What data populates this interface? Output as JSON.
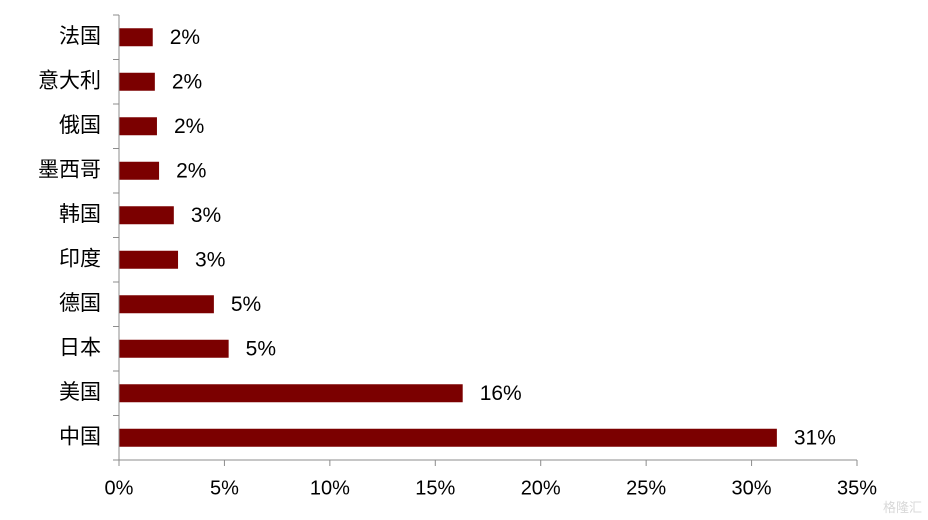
{
  "chart_data": {
    "type": "bar",
    "orientation": "horizontal",
    "categories": [
      "中国",
      "美国",
      "日本",
      "德国",
      "印度",
      "韩国",
      "墨西哥",
      "俄国",
      "意大利",
      "法国"
    ],
    "values": [
      31.2,
      16.3,
      5.2,
      4.5,
      2.8,
      2.6,
      1.9,
      1.8,
      1.7,
      1.6
    ],
    "data_labels": [
      "31%",
      "16%",
      "5%",
      "5%",
      "3%",
      "3%",
      "2%",
      "2%",
      "2%",
      "2%"
    ],
    "xlim": [
      0,
      35
    ],
    "xticks": [
      "0%",
      "5%",
      "10%",
      "15%",
      "20%",
      "25%",
      "30%",
      "35%"
    ],
    "bar_color": "#7b0000",
    "grid": false,
    "legend": "none"
  },
  "watermark": "格隆汇"
}
